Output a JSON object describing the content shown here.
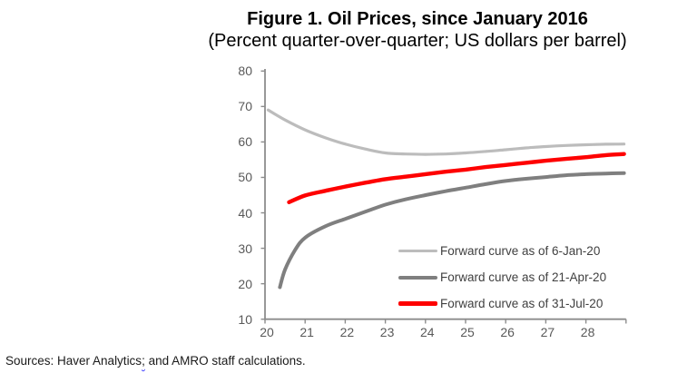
{
  "title": "Figure 1. Oil Prices, since January 2016",
  "subtitle": "(Percent quarter-over-quarter; US dollars per barrel)",
  "source_note": {
    "part1": "Sources: Haver Analytics",
    "part2": ";",
    "part3": " and AMRO staff calculations."
  },
  "colors": {
    "light_gray_series": "#bcbcbc",
    "dark_gray_series": "#7f7f7f",
    "red_series": "#fe0000",
    "axis": "#8c8c8c",
    "tick_label": "#595959",
    "legend_text": "#404040"
  },
  "chart_data": {
    "type": "line",
    "title": "Figure 1. Oil Prices, since January 2016",
    "subtitle": "(Percent quarter-over-quarter; US dollars per barrel)",
    "grid": false,
    "legend_position": "inside-bottom-right",
    "x_axis": {
      "range": [
        20,
        29
      ],
      "ticks": [
        "20",
        "21",
        "22",
        "23",
        "24",
        "25",
        "26",
        "27",
        "28"
      ],
      "tick_values": [
        20,
        21,
        22,
        23,
        24,
        25,
        26,
        27,
        28
      ],
      "label": ""
    },
    "y_axis": {
      "range": [
        10,
        80
      ],
      "ticks": [
        "10",
        "20",
        "30",
        "40",
        "50",
        "60",
        "70",
        "80"
      ],
      "tick_values": [
        10,
        20,
        30,
        40,
        50,
        60,
        70,
        80
      ],
      "label": ""
    },
    "series": [
      {
        "name": "Forward curve as of 6-Jan-20",
        "color": "#bcbcbc",
        "stroke_width": 3.2,
        "x": [
          20.08,
          20.5,
          21,
          21.5,
          22,
          22.5,
          23,
          23.5,
          24,
          24.5,
          25,
          25.5,
          26,
          26.5,
          27,
          27.5,
          28,
          28.5,
          28.95
        ],
        "y": [
          69,
          66.2,
          63.4,
          61.2,
          59.4,
          58.0,
          56.9,
          56.6,
          56.5,
          56.6,
          56.9,
          57.3,
          57.8,
          58.3,
          58.7,
          59.0,
          59.2,
          59.35,
          59.4
        ]
      },
      {
        "name": "Forward curve as of 21-Apr-20",
        "color": "#7f7f7f",
        "stroke_width": 4,
        "x": [
          20.37,
          20.5,
          20.75,
          21,
          21.5,
          22,
          22.5,
          23,
          23.5,
          24,
          24.5,
          25,
          25.5,
          26,
          26.5,
          27,
          27.5,
          28,
          28.5,
          28.95
        ],
        "y": [
          19,
          24,
          29.5,
          33,
          36.2,
          38.3,
          40.3,
          42.3,
          43.8,
          45.0,
          46.1,
          47.1,
          48.1,
          49.0,
          49.6,
          50.1,
          50.6,
          50.9,
          51.1,
          51.2
        ]
      },
      {
        "name": "Forward curve as of 31-Jul-20",
        "color": "#fe0000",
        "stroke_width": 4.4,
        "x": [
          20.6,
          21,
          21.5,
          22,
          22.5,
          23,
          23.5,
          24,
          24.5,
          25,
          25.5,
          26,
          26.5,
          27,
          27.5,
          28,
          28.5,
          28.95
        ],
        "y": [
          43,
          44.9,
          46.2,
          47.4,
          48.5,
          49.5,
          50.2,
          50.9,
          51.6,
          52.2,
          52.9,
          53.5,
          54.1,
          54.7,
          55.2,
          55.7,
          56.3,
          56.6
        ]
      }
    ]
  }
}
